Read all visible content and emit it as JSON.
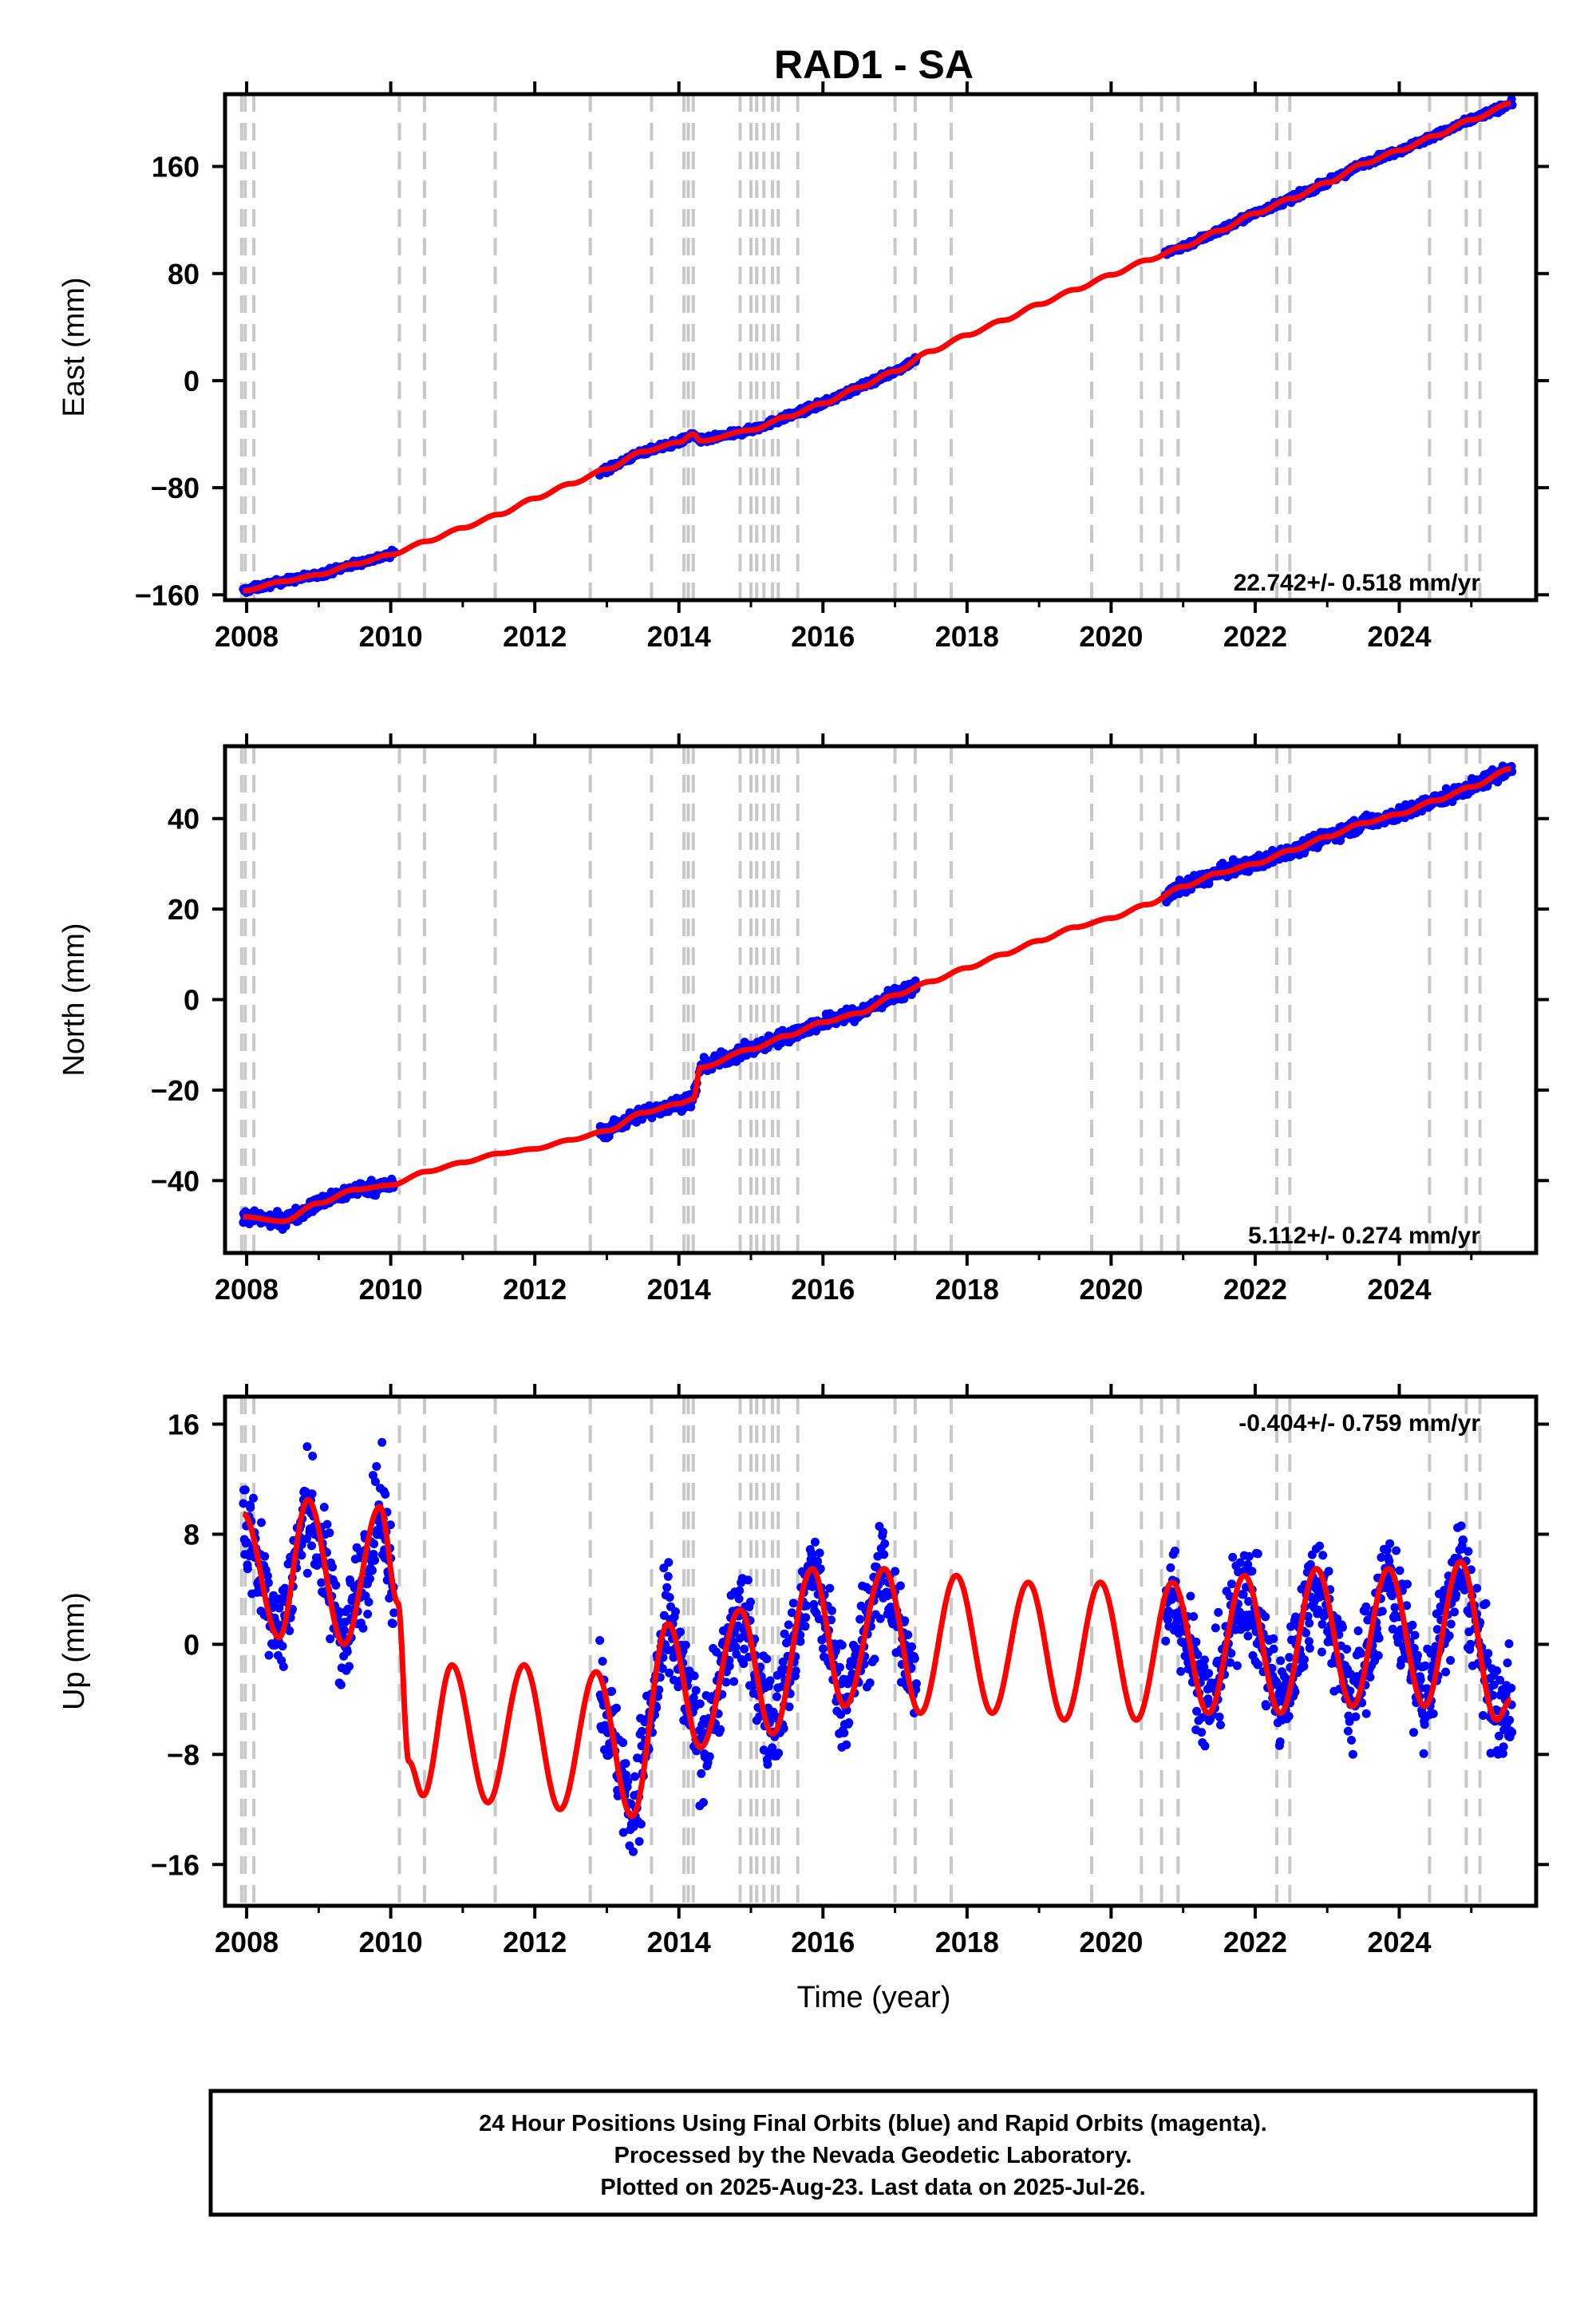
{
  "title": "RAD1 - SA",
  "xlabel": "Time (year)",
  "footer": {
    "line1": "24 Hour Positions Using Final Orbits (blue) and Rapid Orbits (magenta).",
    "line2": "Processed by the Nevada Geodetic Laboratory.",
    "line3": "Plotted on 2025-Aug-23. Last data on 2025-Jul-26."
  },
  "colors": {
    "data": "#0000ff",
    "model": "#ff0000",
    "break_line": "#c8c8c8",
    "frame": "#000000"
  },
  "break_years": [
    2007.93,
    2007.98,
    2008.1,
    2010.12,
    2010.47,
    2011.45,
    2012.77,
    2013.62,
    2014.07,
    2014.13,
    2014.2,
    2014.85,
    2015.0,
    2015.08,
    2015.18,
    2015.3,
    2015.38,
    2015.65,
    2017.0,
    2017.28,
    2017.78,
    2019.73,
    2020.42,
    2020.7,
    2020.93,
    2022.3,
    2022.48,
    2024.42,
    2024.93,
    2025.12
  ],
  "chart_data": [
    {
      "type": "scatter",
      "id": "east",
      "ylabel": "East (mm)",
      "rate": "22.742+/- 0.518 mm/yr",
      "xlim": [
        2007.7,
        2025.9
      ],
      "ylim": [
        -164,
        214
      ],
      "xticks": [
        2008,
        2010,
        2012,
        2014,
        2016,
        2018,
        2020,
        2022,
        2024
      ],
      "yticks": [
        -160,
        -80,
        0,
        80,
        160
      ],
      "observation_intervals": [
        [
          2007.95,
          2010.05
        ],
        [
          2012.9,
          2014.25
        ],
        [
          2014.28,
          2017.3
        ],
        [
          2020.75,
          2025.57
        ]
      ],
      "series": [
        {
          "role": "observations",
          "x": [
            2008.0,
            2008.5,
            2009.0,
            2009.5,
            2010.0,
            2013.0,
            2013.5,
            2014.0,
            2014.2,
            2014.3,
            2015.0,
            2015.5,
            2016.0,
            2016.5,
            2017.0,
            2017.3,
            2020.8,
            2021.5,
            2022.0,
            2022.5,
            2023.0,
            2023.5,
            2024.0,
            2024.5,
            2025.0,
            2025.5
          ],
          "y": [
            -157,
            -150,
            -145,
            -137,
            -130,
            -66,
            -53,
            -46,
            -40,
            -45,
            -37,
            -27,
            -17,
            -5,
            7,
            16,
            93,
            110,
            125,
            136,
            148,
            162,
            172,
            183,
            195,
            206
          ]
        },
        {
          "role": "model",
          "x": [
            2007.95,
            2008.5,
            2009.0,
            2009.5,
            2010.0,
            2010.5,
            2011.0,
            2011.5,
            2012.0,
            2012.5,
            2013.0,
            2013.5,
            2014.0,
            2014.2,
            2014.3,
            2015.0,
            2015.5,
            2016.0,
            2016.5,
            2017.0,
            2017.5,
            2018.0,
            2018.5,
            2019.0,
            2019.5,
            2020.0,
            2020.5,
            2021.0,
            2021.5,
            2022.0,
            2022.5,
            2023.0,
            2023.5,
            2024.0,
            2024.5,
            2025.0,
            2025.55
          ],
          "y": [
            -157,
            -150,
            -145,
            -137,
            -130,
            -120,
            -110,
            -100,
            -88,
            -77,
            -66,
            -53,
            -46,
            -40,
            -45,
            -37,
            -27,
            -17,
            -5,
            7,
            22,
            34,
            45,
            57,
            68,
            79,
            90,
            100,
            112,
            125,
            136,
            148,
            162,
            172,
            183,
            195,
            207
          ]
        }
      ]
    },
    {
      "type": "scatter",
      "id": "north",
      "ylabel": "North (mm)",
      "rate": "5.112+/- 0.274 mm/yr",
      "xlim": [
        2007.7,
        2025.9
      ],
      "ylim": [
        -56,
        56
      ],
      "xticks": [
        2008,
        2010,
        2012,
        2014,
        2016,
        2018,
        2020,
        2022,
        2024
      ],
      "yticks": [
        -40,
        -20,
        0,
        20,
        40
      ],
      "observation_intervals": [
        [
          2007.95,
          2010.05
        ],
        [
          2012.9,
          2014.25
        ],
        [
          2014.28,
          2017.3
        ],
        [
          2020.75,
          2025.57
        ]
      ],
      "series": [
        {
          "role": "observations",
          "x": [
            2008.0,
            2008.5,
            2009.0,
            2009.5,
            2010.0,
            2013.0,
            2013.5,
            2014.0,
            2014.2,
            2014.3,
            2015.0,
            2015.5,
            2016.0,
            2016.5,
            2017.0,
            2017.3,
            2020.8,
            2021.5,
            2022.0,
            2022.5,
            2023.0,
            2023.5,
            2024.0,
            2024.5,
            2025.0,
            2025.5
          ],
          "y": [
            -48,
            -49,
            -45,
            -42,
            -41,
            -28,
            -25,
            -23,
            -22,
            -15,
            -11,
            -8,
            -5,
            -3,
            1,
            3,
            23,
            28,
            30,
            33,
            36,
            39,
            41,
            44,
            47,
            50
          ]
        },
        {
          "role": "model",
          "x": [
            2007.95,
            2008.5,
            2009.0,
            2009.5,
            2010.0,
            2010.5,
            2011.0,
            2011.5,
            2012.0,
            2012.5,
            2013.0,
            2013.5,
            2014.0,
            2014.2,
            2014.3,
            2015.0,
            2015.5,
            2016.0,
            2016.5,
            2017.0,
            2017.5,
            2018.0,
            2018.5,
            2019.0,
            2019.5,
            2020.0,
            2020.5,
            2021.0,
            2021.5,
            2022.0,
            2022.5,
            2023.0,
            2023.5,
            2024.0,
            2024.5,
            2025.0,
            2025.55
          ],
          "y": [
            -48,
            -49,
            -45,
            -42,
            -41,
            -38,
            -36,
            -34,
            -33,
            -31,
            -29,
            -25,
            -23,
            -22,
            -15,
            -11,
            -8,
            -5,
            -3,
            1,
            4,
            7,
            10,
            13,
            16,
            18,
            21,
            25,
            28,
            30,
            33,
            36,
            39,
            41,
            44,
            47,
            51
          ]
        }
      ]
    },
    {
      "type": "scatter",
      "id": "up",
      "ylabel": "Up (mm)",
      "rate": "-0.404+/- 0.759 mm/yr",
      "xlim": [
        2007.7,
        2025.9
      ],
      "ylim": [
        -19,
        18
      ],
      "xticks": [
        2008,
        2010,
        2012,
        2014,
        2016,
        2018,
        2020,
        2022,
        2024
      ],
      "yticks": [
        -16,
        -8,
        0,
        8,
        16
      ],
      "observation_intervals": [
        [
          2007.95,
          2010.05
        ],
        [
          2012.9,
          2014.25
        ],
        [
          2014.28,
          2017.3
        ],
        [
          2020.75,
          2025.57
        ]
      ],
      "series": [
        {
          "role": "observations",
          "x": [
            2008.0,
            2008.4,
            2008.8,
            2009.3,
            2009.8,
            2013.0,
            2013.4,
            2013.8,
            2014.2,
            2014.8,
            2015.3,
            2015.8,
            2016.3,
            2016.8,
            2017.2,
            2020.8,
            2021.3,
            2021.8,
            2022.3,
            2022.8,
            2023.3,
            2023.8,
            2024.3,
            2024.8,
            2025.3
          ],
          "y": [
            9,
            1,
            10,
            0,
            9,
            -8,
            -12,
            2,
            -7,
            3,
            -7,
            5,
            -4,
            5,
            -4,
            4,
            -5,
            5,
            -4,
            5,
            -4,
            5,
            -4,
            6,
            -5
          ]
        },
        {
          "role": "model",
          "x": [
            2007.95,
            2008.45,
            2008.85,
            2009.35,
            2009.85,
            2010.1,
            2010.25,
            2010.45,
            2010.85,
            2011.35,
            2011.85,
            2012.35,
            2012.85,
            2013.35,
            2013.85,
            2014.3,
            2014.85,
            2015.3,
            2015.85,
            2016.3,
            2016.85,
            2017.35,
            2017.85,
            2018.35,
            2018.85,
            2019.35,
            2019.85,
            2020.35,
            2020.85,
            2021.35,
            2021.85,
            2022.35,
            2022.85,
            2023.35,
            2023.85,
            2024.35,
            2024.85,
            2025.35,
            2025.55
          ],
          "y": [
            9.5,
            0.5,
            10.5,
            0,
            10,
            3,
            -8.5,
            -11,
            -1.5,
            -11.5,
            -1.5,
            -12,
            -2,
            -12.5,
            1.5,
            -7.5,
            2.5,
            -6.5,
            5.5,
            -4.5,
            5.5,
            -5,
            5,
            -5,
            4.5,
            -5.5,
            4.5,
            -5.5,
            4.5,
            -5,
            5,
            -5,
            5.5,
            -4.5,
            5.5,
            -4.5,
            6,
            -5.5,
            -4
          ]
        }
      ]
    }
  ]
}
